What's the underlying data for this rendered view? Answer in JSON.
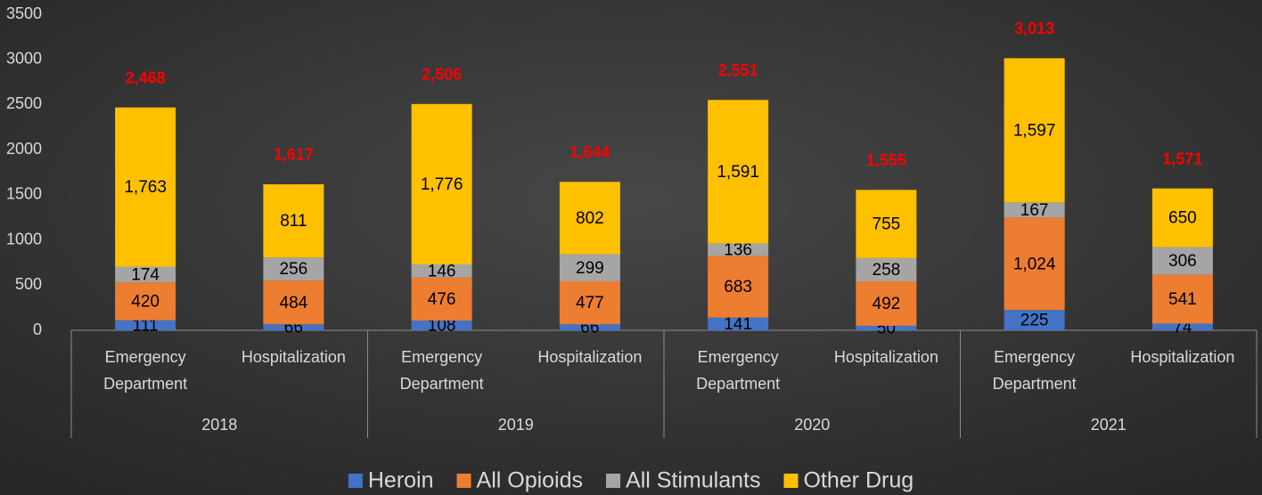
{
  "chart_data": {
    "type": "stacked-bar",
    "categories": [
      "Emergency Department",
      "Hospitalization",
      "Emergency Department",
      "Hospitalization",
      "Emergency Department",
      "Hospitalization",
      "Emergency Department",
      "Hospitalization"
    ],
    "groups": [
      "2018",
      "2019",
      "2020",
      "2021"
    ],
    "series": [
      {
        "name": "Heroin",
        "color": "#4472c4",
        "values": [
          111,
          66,
          108,
          66,
          141,
          50,
          225,
          74
        ]
      },
      {
        "name": "All Opioids",
        "color": "#ed7d31",
        "values": [
          420,
          484,
          476,
          477,
          683,
          492,
          1024,
          541
        ],
        "value_labels": [
          "420",
          "484",
          "476",
          "477",
          "683",
          "492",
          "1,024",
          "541"
        ]
      },
      {
        "name": "All Stimulants",
        "color": "#a5a5a5",
        "values": [
          174,
          256,
          146,
          299,
          136,
          258,
          167,
          306
        ]
      },
      {
        "name": "Other Drug",
        "color": "#ffc000",
        "values": [
          1763,
          811,
          1776,
          802,
          1591,
          755,
          1597,
          650
        ],
        "value_labels": [
          "1,763",
          "811",
          "1,776",
          "802",
          "1,591",
          "755",
          "1,597",
          "650"
        ]
      }
    ],
    "totals": [
      2468,
      1617,
      2506,
      1644,
      2551,
      1555,
      3013,
      1571
    ],
    "total_labels": [
      "2,468",
      "1,617",
      "2,506",
      "1,644",
      "2,551",
      "1,555",
      "3,013",
      "1,571"
    ],
    "total_color": "#ff0000",
    "ylim": [
      0,
      3500
    ],
    "yticks": [
      0,
      500,
      1000,
      1500,
      2000,
      2500,
      3000,
      3500
    ],
    "grid": false,
    "legend": "bottom"
  }
}
